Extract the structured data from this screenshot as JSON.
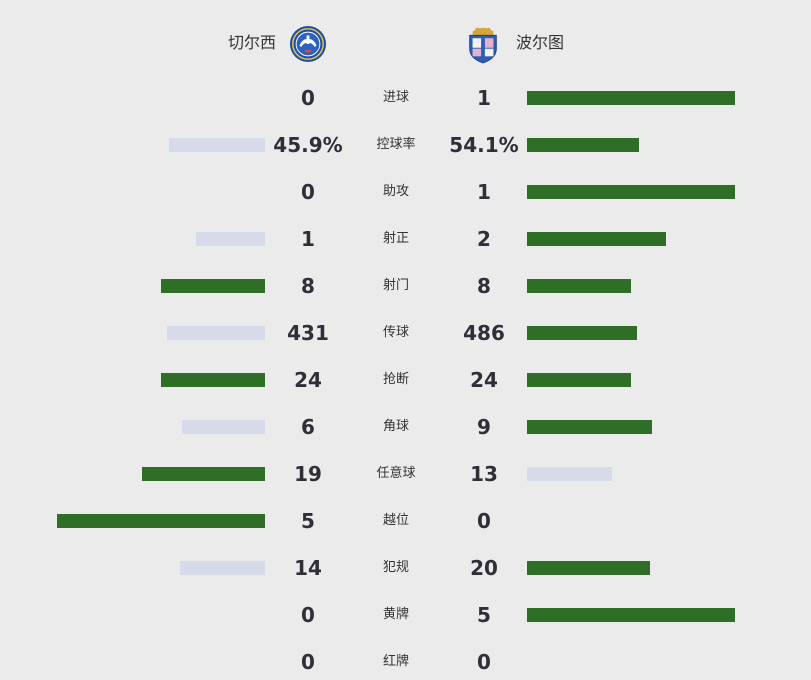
{
  "header": {
    "home_team": "切尔西",
    "away_team": "波尔图",
    "home_logo": "chelsea-crest-icon",
    "away_logo": "porto-crest-icon"
  },
  "colors": {
    "leading_bar": "#2e6e27",
    "trailing_bar": "#d5dbe8",
    "background": "#ebebeb"
  },
  "stats": [
    {
      "label": "进球",
      "home": "0",
      "away": "1",
      "home_fraction": 0.0,
      "away_fraction": 1.0
    },
    {
      "label": "控球率",
      "home": "45.9%",
      "away": "54.1%",
      "home_fraction": 0.46,
      "away_fraction": 0.54
    },
    {
      "label": "助攻",
      "home": "0",
      "away": "1",
      "home_fraction": 0.0,
      "away_fraction": 1.0
    },
    {
      "label": "射正",
      "home": "1",
      "away": "2",
      "home_fraction": 0.33,
      "away_fraction": 0.67
    },
    {
      "label": "射门",
      "home": "8",
      "away": "8",
      "home_fraction": 0.5,
      "away_fraction": 0.5
    },
    {
      "label": "传球",
      "home": "431",
      "away": "486",
      "home_fraction": 0.47,
      "away_fraction": 0.53
    },
    {
      "label": "抢断",
      "home": "24",
      "away": "24",
      "home_fraction": 0.5,
      "away_fraction": 0.5
    },
    {
      "label": "角球",
      "home": "6",
      "away": "9",
      "home_fraction": 0.4,
      "away_fraction": 0.6
    },
    {
      "label": "任意球",
      "home": "19",
      "away": "13",
      "home_fraction": 0.59,
      "away_fraction": 0.41
    },
    {
      "label": "越位",
      "home": "5",
      "away": "0",
      "home_fraction": 1.0,
      "away_fraction": 0.0
    },
    {
      "label": "犯规",
      "home": "14",
      "away": "20",
      "home_fraction": 0.41,
      "away_fraction": 0.59
    },
    {
      "label": "黄牌",
      "home": "0",
      "away": "5",
      "home_fraction": 0.0,
      "away_fraction": 1.0
    },
    {
      "label": "红牌",
      "home": "0",
      "away": "0",
      "home_fraction": 0.0,
      "away_fraction": 0.0
    }
  ]
}
